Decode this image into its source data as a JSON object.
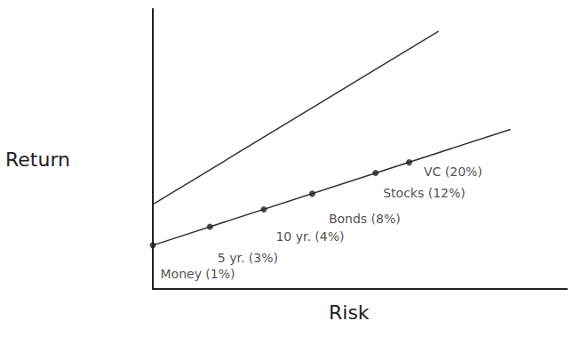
{
  "chart_data": {
    "type": "line",
    "x_label": "Risk",
    "y_label": "Return",
    "xlim": [
      0,
      100
    ],
    "ylim": [
      0,
      100
    ],
    "tick_labels": false,
    "grid": false,
    "series": [
      {
        "type": "line",
        "marker": "none",
        "line_style": "solid",
        "color": "#333333",
        "x": [
          0,
          69
        ],
        "values": [
          30.2,
          92
        ]
      },
      {
        "type": "line",
        "marker": "none",
        "line_style": "solid",
        "color": "#333333",
        "x": [
          0,
          86.4
        ],
        "values": [
          15.6,
          57
        ]
      },
      {
        "type": "scatter",
        "marker": "circle",
        "color": "#222222",
        "x": [
          0,
          13.8,
          26.8,
          38.5,
          53.8,
          61.9
        ],
        "values": [
          15.6,
          22.2,
          28.4,
          34.0,
          41.4,
          45.2
        ],
        "labels": [
          "Money (1%)",
          "5 yr. (3%)",
          "10 yr. (4%)",
          "Bonds (8%)",
          "Stocks (12%)",
          "VC (20%)"
        ]
      }
    ]
  }
}
